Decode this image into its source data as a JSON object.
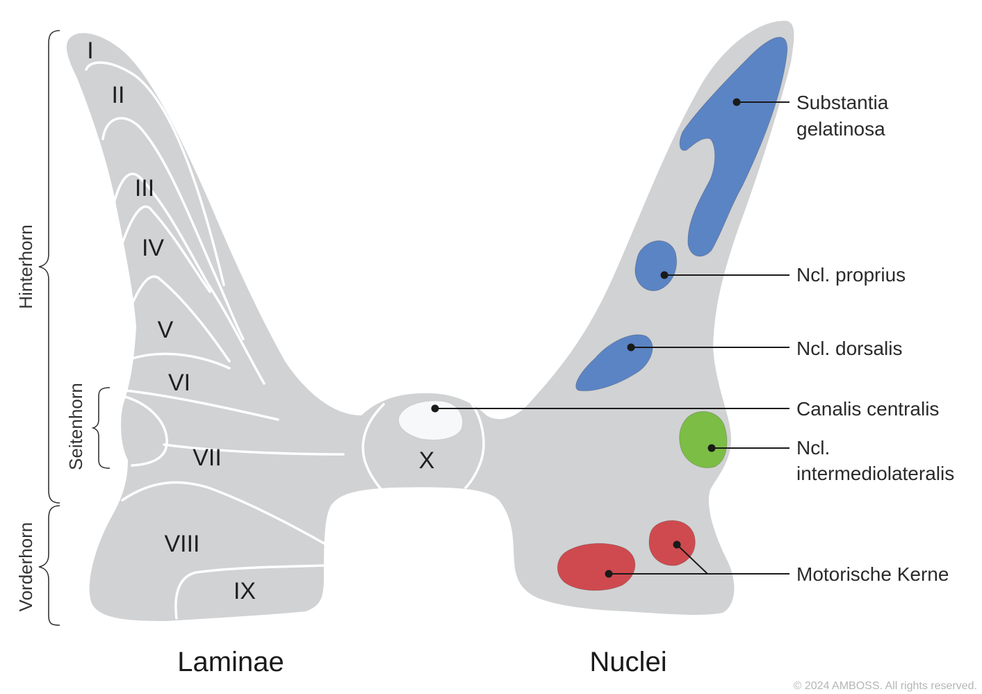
{
  "laminae": [
    "I",
    "II",
    "III",
    "IV",
    "V",
    "VI",
    "VII",
    "VIII",
    "IX",
    "X"
  ],
  "regions": {
    "hinterhorn": "Hinterhorn",
    "seitenhorn": "Seitenhorn",
    "vorderhorn": "Vorderhorn"
  },
  "nuclei": {
    "substantia_gelatinosa": [
      "Substantia",
      "gelatinosa"
    ],
    "ncl_proprius": "Ncl. proprius",
    "ncl_dorsalis": "Ncl. dorsalis",
    "canalis_centralis": "Canalis centralis",
    "ncl_intermediolateralis": [
      "Ncl.",
      "intermediolateralis"
    ],
    "motorische_kerne": "Motorische Kerne"
  },
  "titles": {
    "left": "Laminae",
    "right": "Nuclei"
  },
  "copyright": "© 2024 AMBOSS. All rights reserved.",
  "colors": {
    "grey_matter": "#d1d2d4",
    "sensory_nuclei": "#5b84c4",
    "autonomic_nucleus": "#7cbd45",
    "motor_nuclei": "#cf4a4f",
    "canal": "#f7f8fa"
  }
}
